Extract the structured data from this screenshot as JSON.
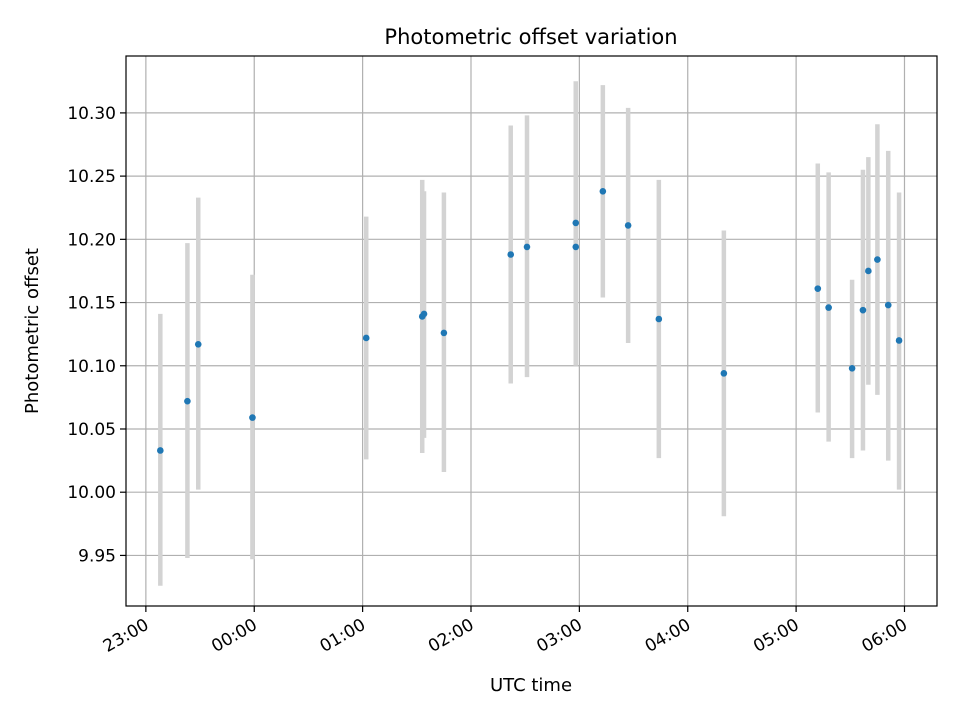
{
  "chart_data": {
    "type": "scatter",
    "title": "Photometric offset variation",
    "xlabel": "UTC time",
    "ylabel": "Photometric offset",
    "x_axis": {
      "kind": "time",
      "range": [
        "22:49",
        "06:18"
      ],
      "ticks": [
        "23:00",
        "00:00",
        "01:00",
        "02:00",
        "03:00",
        "04:00",
        "05:00",
        "06:00"
      ]
    },
    "y_axis": {
      "range": [
        9.91,
        10.345
      ],
      "ticks": [
        9.95,
        10.0,
        10.05,
        10.1,
        10.15,
        10.2,
        10.25,
        10.3
      ],
      "tick_labels": [
        "9.95",
        "10.00",
        "10.05",
        "10.10",
        "10.15",
        "10.20",
        "10.25",
        "10.30"
      ]
    },
    "grid": true,
    "colors": {
      "point": "#1f77b4",
      "errorbar": "#d3d3d3",
      "grid": "#b0b0b0"
    },
    "points": [
      {
        "x": "23:08",
        "y": 10.033,
        "low": 9.926,
        "high": 10.141
      },
      {
        "x": "23:23",
        "y": 10.072,
        "low": 9.948,
        "high": 10.197
      },
      {
        "x": "23:29",
        "y": 10.117,
        "low": 10.002,
        "high": 10.233
      },
      {
        "x": "23:59",
        "y": 10.059,
        "low": 9.947,
        "high": 10.172
      },
      {
        "x": "01:02",
        "y": 10.122,
        "low": 10.026,
        "high": 10.218
      },
      {
        "x": "01:33",
        "y": 10.139,
        "low": 10.031,
        "high": 10.247
      },
      {
        "x": "01:34",
        "y": 10.141,
        "low": 10.043,
        "high": 10.238
      },
      {
        "x": "01:45",
        "y": 10.126,
        "low": 10.016,
        "high": 10.237
      },
      {
        "x": "02:22",
        "y": 10.188,
        "low": 10.086,
        "high": 10.29
      },
      {
        "x": "02:31",
        "y": 10.194,
        "low": 10.091,
        "high": 10.298
      },
      {
        "x": "02:58",
        "y": 10.213,
        "low": 10.1,
        "high": 10.325
      },
      {
        "x": "02:58",
        "y": 10.194,
        "low": 10.103,
        "high": 10.286
      },
      {
        "x": "03:13",
        "y": 10.238,
        "low": 10.154,
        "high": 10.322
      },
      {
        "x": "03:27",
        "y": 10.211,
        "low": 10.118,
        "high": 10.304
      },
      {
        "x": "03:44",
        "y": 10.137,
        "low": 10.027,
        "high": 10.247
      },
      {
        "x": "04:20",
        "y": 10.094,
        "low": 9.981,
        "high": 10.207
      },
      {
        "x": "05:12",
        "y": 10.161,
        "low": 10.063,
        "high": 10.26
      },
      {
        "x": "05:18",
        "y": 10.146,
        "low": 10.04,
        "high": 10.253
      },
      {
        "x": "05:31",
        "y": 10.098,
        "low": 10.027,
        "high": 10.168
      },
      {
        "x": "05:37",
        "y": 10.144,
        "low": 10.033,
        "high": 10.255
      },
      {
        "x": "05:40",
        "y": 10.175,
        "low": 10.085,
        "high": 10.265
      },
      {
        "x": "05:45",
        "y": 10.184,
        "low": 10.077,
        "high": 10.291
      },
      {
        "x": "05:51",
        "y": 10.148,
        "low": 10.025,
        "high": 10.27
      },
      {
        "x": "05:57",
        "y": 10.12,
        "low": 10.002,
        "high": 10.237
      }
    ]
  }
}
